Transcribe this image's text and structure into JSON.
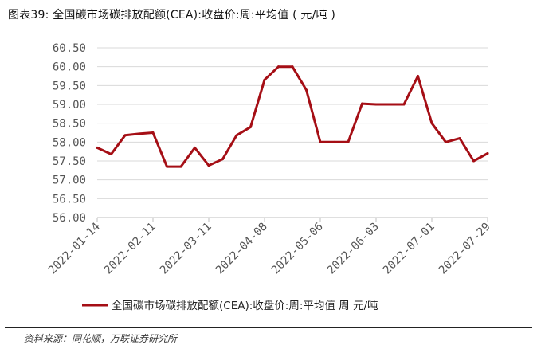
{
  "figure": {
    "title": "图表39:  全国碳市场碳排放配额(CEA):收盘价:周:平均值 ( 元/吨 )",
    "source": "资料来源：同花顺，万联证券研究所"
  },
  "chart_data": {
    "type": "line",
    "title": "",
    "xlabel": "",
    "ylabel": "",
    "ylim": [
      56.0,
      60.5
    ],
    "yticks": [
      "56.00",
      "56.50",
      "57.00",
      "57.50",
      "58.00",
      "58.50",
      "59.00",
      "59.50",
      "60.00",
      "60.50"
    ],
    "xtick_labels": [
      "2022-01-14",
      "2022-02-11",
      "2022-03-11",
      "2022-04-08",
      "2022-05-06",
      "2022-06-03",
      "2022-07-01",
      "2022-07-29"
    ],
    "x": [
      "2022-01-14",
      "2022-01-21",
      "2022-01-28",
      "2022-02-04",
      "2022-02-11",
      "2022-02-18",
      "2022-02-25",
      "2022-03-04",
      "2022-03-11",
      "2022-03-18",
      "2022-03-25",
      "2022-04-01",
      "2022-04-08",
      "2022-04-15",
      "2022-04-22",
      "2022-04-29",
      "2022-05-06",
      "2022-05-13",
      "2022-05-20",
      "2022-05-27",
      "2022-06-03",
      "2022-06-10",
      "2022-06-17",
      "2022-06-24",
      "2022-07-01",
      "2022-07-08",
      "2022-07-15",
      "2022-07-22",
      "2022-07-29"
    ],
    "series": [
      {
        "name": "全国碳市场碳排放配额(CEA):收盘价:周:平均值  周  元/吨",
        "color": "#A50E15",
        "values": [
          57.85,
          57.68,
          58.18,
          58.22,
          58.25,
          57.35,
          57.35,
          57.85,
          57.38,
          57.55,
          58.18,
          58.4,
          59.65,
          60.0,
          60.0,
          59.38,
          58.0,
          58.0,
          58.0,
          59.02,
          59.0,
          59.0,
          59.0,
          59.75,
          58.5,
          58.0,
          58.1,
          57.5,
          57.7
        ]
      }
    ],
    "grid": "horizontal",
    "legend": "bottom"
  }
}
